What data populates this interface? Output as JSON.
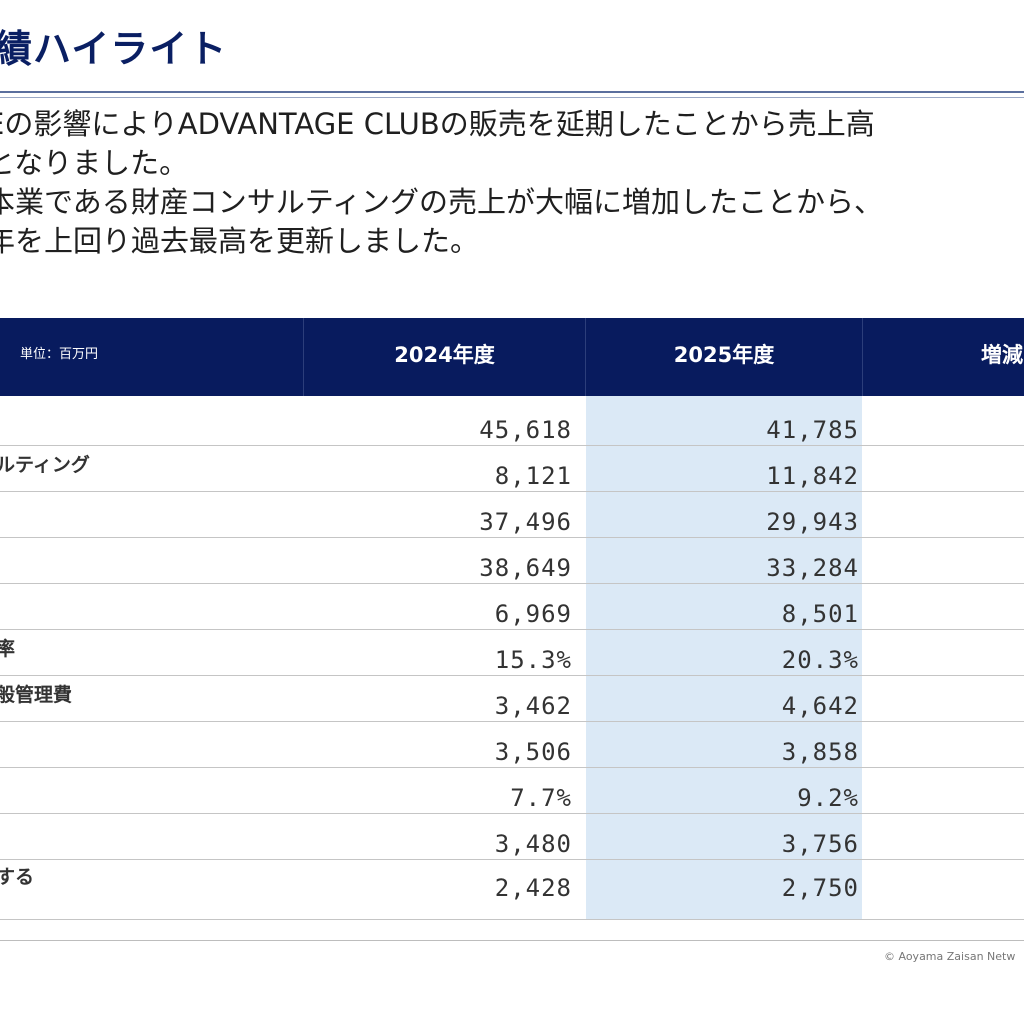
{
  "page": {
    "title": "績ハイライト",
    "body_lines": [
      "Eの影響によりADVANTAGE CLUBの販売を延期したことから売上高",
      "となりました。",
      "本業である財産コンサルティングの売上が大幅に増加したことから、",
      "年を上回り過去最高を更新しました。"
    ]
  },
  "table": {
    "unit_label": "単位：百万円",
    "headers": [
      "2024年度",
      "2025年度",
      "増減"
    ],
    "rows": [
      {
        "label": "",
        "v2024": "45,618",
        "v2025": "41,785"
      },
      {
        "label": "ルティング",
        "v2024": "8,121",
        "v2025": "11,842"
      },
      {
        "label": "",
        "v2024": "37,496",
        "v2025": "29,943"
      },
      {
        "label": "",
        "v2024": "38,649",
        "v2025": "33,284"
      },
      {
        "label": "",
        "v2024": "6,969",
        "v2025": "8,501"
      },
      {
        "label": "率",
        "v2024": "15.3%",
        "v2025": "20.3%"
      },
      {
        "label": "般管理費",
        "v2024": "3,462",
        "v2025": "4,642"
      },
      {
        "label": "",
        "v2024": "3,506",
        "v2025": "3,858"
      },
      {
        "label": "",
        "v2024": "7.7%",
        "v2025": "9.2%"
      },
      {
        "label": "",
        "v2024": "3,480",
        "v2025": "3,756"
      },
      {
        "label": "する",
        "v2024": "2,428",
        "v2025": "2,750"
      }
    ]
  },
  "footer": {
    "copyright": "© Aoyama Zaisan Netw"
  }
}
